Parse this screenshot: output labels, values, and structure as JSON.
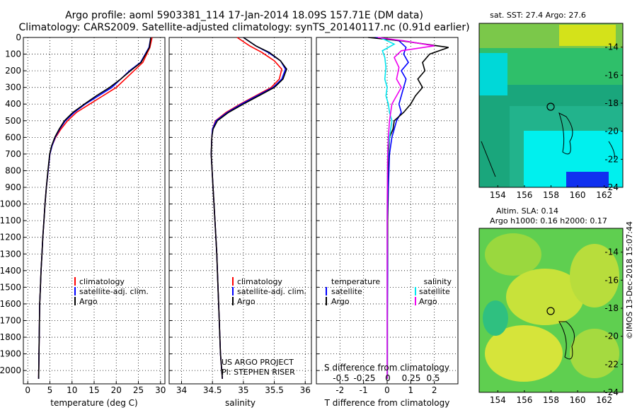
{
  "title": {
    "line1": "Argo profile: aoml 5903381_114 17-Jan-2014 18.09S 157.71E (DM data)",
    "line2": "Climatology: CARS2009. Satellite-adjusted climatology: synTS_20140117.nc (0.91d earlier)"
  },
  "colors": {
    "climatology": "#ff0000",
    "satellite": "#0000ff",
    "argo": "#000000",
    "sat_salinity": "#00e5ee",
    "argo_salinity": "#ee00ee"
  },
  "depth_ticks": [
    "0",
    "100",
    "200",
    "300",
    "400",
    "500",
    "600",
    "700",
    "800",
    "900",
    "1000",
    "1100",
    "1200",
    "1300",
    "1400",
    "1500",
    "1600",
    "1700",
    "1800",
    "1900",
    "2000"
  ],
  "legend": {
    "climatology": "climatology",
    "satellite_adj": "satellite-adj. clim.",
    "argo": "Argo"
  },
  "diff_legend": {
    "temperature": "temperature",
    "salinity": "salinity",
    "satellite": "satellite",
    "argo": "Argo"
  },
  "credits": {
    "line1": "US ARGO PROJECT",
    "line2": "PI: STEPHEN RISER"
  },
  "s_diff": {
    "label": "S difference from climatology",
    "ticks": [
      "-0.5",
      "-0.25",
      "0",
      "0.25",
      "0.5"
    ]
  },
  "maps": {
    "sst_title": "sat. SST: 27.4 Argo: 27.6",
    "sla_title1": "Altim. SLA: 0.14",
    "sla_title2": "Argo h1000: 0.16 h2000: 0.17",
    "lat_ticks": [
      "-14",
      "-16",
      "-18",
      "-20",
      "-22",
      "-24"
    ],
    "lon_ticks": [
      "154",
      "156",
      "158",
      "160",
      "162"
    ]
  },
  "stamp": "©IMOS 13-Dec-2018 15:07:44",
  "chart_data": [
    {
      "type": "line",
      "title": "",
      "xlabel": "temperature (deg C)",
      "ylabel": "",
      "xlim": [
        -1,
        31
      ],
      "ylim": [
        2080,
        0
      ],
      "xticks": [
        "0",
        "5",
        "10",
        "15",
        "20",
        "25",
        "30"
      ],
      "series": [
        {
          "name": "climatology",
          "color": "#ff0000",
          "x": [
            28.1,
            27.6,
            26,
            24,
            22,
            20,
            17,
            14,
            11,
            9,
            7.5,
            6.3,
            5.5,
            5,
            4.6,
            4.2,
            3.9,
            3.65,
            3.4,
            3.2,
            3,
            2.85,
            2.7,
            2.58,
            2.46
          ],
          "y": [
            0,
            60,
            150,
            200,
            250,
            300,
            350,
            400,
            450,
            500,
            550,
            600,
            650,
            700,
            800,
            900,
            1000,
            1100,
            1200,
            1300,
            1400,
            1500,
            1600,
            1800,
            2050
          ]
        },
        {
          "name": "satellite-adj. clim.",
          "color": "#0000ff",
          "x": [
            27.8,
            27.4,
            25.5,
            23,
            21,
            19,
            16,
            13,
            10.5,
            8.5,
            7.2,
            6.2,
            5.5,
            5,
            4.6,
            4.2,
            3.9,
            3.65,
            3.4,
            3.2,
            3,
            2.85,
            2.7,
            2.58,
            2.46
          ],
          "y": [
            0,
            60,
            150,
            200,
            250,
            300,
            350,
            400,
            450,
            500,
            550,
            600,
            650,
            700,
            800,
            900,
            1000,
            1100,
            1200,
            1300,
            1400,
            1500,
            1600,
            1800,
            2050
          ]
        },
        {
          "name": "Argo",
          "color": "#000000",
          "x": [
            27.8,
            27.5,
            25.6,
            23.2,
            21,
            18.5,
            15.5,
            12.8,
            10.2,
            8.3,
            7.1,
            6.1,
            5.4,
            4.95,
            4.55,
            4.2,
            3.9,
            3.65,
            3.4,
            3.2,
            3,
            2.85,
            2.7,
            2.58,
            2.46
          ],
          "y": [
            0,
            60,
            150,
            200,
            250,
            300,
            350,
            400,
            450,
            500,
            550,
            600,
            650,
            700,
            800,
            900,
            1000,
            1100,
            1200,
            1300,
            1400,
            1500,
            1600,
            1800,
            2050
          ]
        }
      ]
    },
    {
      "type": "line",
      "title": "",
      "xlabel": "salinity",
      "ylabel": "",
      "xlim": [
        33.8,
        36.1
      ],
      "ylim": [
        2080,
        0
      ],
      "xticks": [
        "34",
        "34.5",
        "35",
        "35.5",
        "36"
      ],
      "series": [
        {
          "name": "climatology",
          "color": "#ff0000",
          "x": [
            34.9,
            35.1,
            35.3,
            35.5,
            35.62,
            35.58,
            35.45,
            35.2,
            34.95,
            34.72,
            34.55,
            34.5,
            34.49,
            34.48,
            34.51,
            34.54,
            34.57,
            34.59,
            34.61,
            34.63,
            34.65,
            34.66
          ],
          "y": [
            0,
            50,
            90,
            140,
            190,
            250,
            300,
            350,
            400,
            450,
            500,
            550,
            600,
            700,
            900,
            1100,
            1300,
            1500,
            1700,
            1900,
            2000,
            2050
          ]
        },
        {
          "name": "satellite-adj. clim.",
          "color": "#0000ff",
          "x": [
            35.0,
            35.2,
            35.4,
            35.6,
            35.68,
            35.62,
            35.48,
            35.22,
            34.97,
            34.74,
            34.56,
            34.5,
            34.49,
            34.48,
            34.51,
            34.54,
            34.57,
            34.59,
            34.61,
            34.63,
            34.65,
            34.66
          ],
          "y": [
            0,
            50,
            90,
            140,
            190,
            250,
            300,
            350,
            400,
            450,
            500,
            550,
            600,
            700,
            900,
            1100,
            1300,
            1500,
            1700,
            1900,
            2000,
            2050
          ]
        },
        {
          "name": "Argo",
          "color": "#000000",
          "x": [
            35.0,
            35.2,
            35.42,
            35.6,
            35.7,
            35.64,
            35.5,
            35.25,
            35.0,
            34.76,
            34.58,
            34.51,
            34.49,
            34.48,
            34.51,
            34.54,
            34.57,
            34.59,
            34.61,
            34.63,
            34.65,
            34.66
          ],
          "y": [
            0,
            50,
            90,
            140,
            190,
            250,
            300,
            350,
            400,
            450,
            500,
            550,
            600,
            700,
            900,
            1100,
            1300,
            1500,
            1700,
            1900,
            2000,
            2050
          ]
        }
      ]
    },
    {
      "type": "line",
      "title": "",
      "xlabel": "T difference from climatology",
      "ylabel": "",
      "xlim": [
        -3,
        3
      ],
      "ylim": [
        2080,
        0
      ],
      "xticks": [
        "-2",
        "-1",
        "0",
        "1",
        "2"
      ],
      "series": [
        {
          "name": "temperature satellite",
          "color": "#0000ff",
          "x": [
            -0.5,
            0.5,
            0.8,
            0.7,
            0.9,
            0.6,
            0.8,
            0.7,
            0.6,
            0.5,
            0.6,
            0.4,
            0.3,
            0.2,
            0.1,
            0.05,
            0.02,
            0.02,
            0.01,
            0.01
          ],
          "y": [
            0,
            20,
            60,
            100,
            150,
            200,
            250,
            300,
            350,
            400,
            450,
            500,
            550,
            600,
            700,
            900,
            1100,
            1400,
            1700,
            2050
          ]
        },
        {
          "name": "temperature Argo",
          "color": "#000000",
          "x": [
            -0.8,
            0.6,
            2.6,
            1.8,
            1.5,
            1.6,
            1.3,
            1.5,
            1.2,
            1.0,
            0.7,
            0.3,
            0.25,
            0.1,
            0.05,
            0.02,
            0.02,
            0.01,
            0.01,
            0.01
          ],
          "y": [
            0,
            20,
            60,
            100,
            150,
            200,
            250,
            300,
            350,
            400,
            450,
            500,
            550,
            600,
            700,
            900,
            1100,
            1400,
            1700,
            2050
          ]
        },
        {
          "name": "salinity satellite",
          "color": "#00e5ee",
          "x": [
            -0.3,
            0.3,
            -0.2,
            -0.1,
            -0.05,
            -0.1,
            0,
            -0.05,
            0.05,
            0.1,
            0.2,
            0.15,
            0.05,
            0.02,
            0.01,
            0,
            0,
            0,
            0
          ],
          "y": [
            0,
            40,
            80,
            120,
            180,
            250,
            300,
            350,
            400,
            450,
            500,
            550,
            650,
            750,
            900,
            1100,
            1400,
            1700,
            2050
          ]
        },
        {
          "name": "salinity Argo",
          "color": "#ee00ee",
          "x": [
            -0.4,
            0.7,
            2.0,
            0.6,
            0.3,
            0.5,
            0.4,
            0.6,
            0.4,
            0.2,
            0.1,
            0.05,
            0.02,
            0.01,
            0,
            0,
            0,
            0
          ],
          "y": [
            0,
            20,
            50,
            80,
            120,
            180,
            250,
            300,
            350,
            400,
            500,
            600,
            700,
            900,
            1100,
            1400,
            1700,
            2050
          ]
        }
      ]
    },
    {
      "type": "heatmap",
      "title": "sat. SST: 27.4 Argo: 27.6",
      "xlabel": "",
      "ylabel": "",
      "xlim": [
        152.6,
        163.4
      ],
      "ylim": [
        -24,
        -12.3
      ],
      "argo_position": {
        "lon": 157.71,
        "lat": -18.09
      }
    },
    {
      "type": "heatmap",
      "title": "Altim. SLA: 0.14 / Argo h1000: 0.16 h2000: 0.17",
      "xlabel": "",
      "ylabel": "",
      "xlim": [
        152.6,
        163.4
      ],
      "ylim": [
        -24,
        -12.3
      ],
      "argo_position": {
        "lon": 157.71,
        "lat": -18.09
      }
    }
  ]
}
